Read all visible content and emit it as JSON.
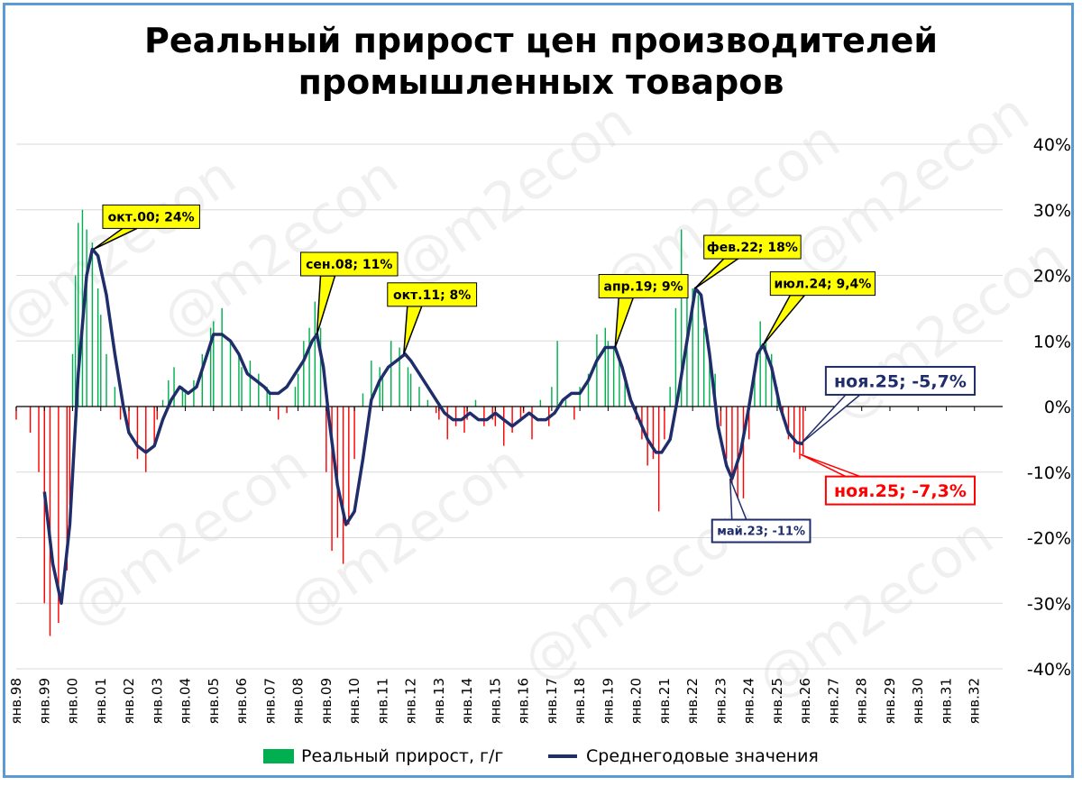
{
  "title_line1": "Реальный прирост цен производителей",
  "title_line2": "промышленных товаров",
  "watermark": "@m2econ",
  "colors": {
    "positive": "#00b050",
    "negative": "#ff0000",
    "line": "#1f2d6b",
    "callout_yellow": "#ffff00",
    "callout_red": "#ff0000",
    "callout_navy": "#1f2d6b"
  },
  "legend": {
    "bars": "Реальный прирост, г/г",
    "line": "Среднегодовые значения"
  },
  "chart_data": {
    "type": "bar",
    "title": "Реальный прирост цен производителей промышленных товаров",
    "ylim": [
      -40,
      40
    ],
    "y_ticks": [
      40,
      30,
      20,
      10,
      0,
      -10,
      -20,
      -30,
      -40
    ],
    "y_tick_labels": [
      "40%",
      "30%",
      "20%",
      "10%",
      "0%",
      "-10%",
      "-20%",
      "-30%",
      "-40%"
    ],
    "x_tick_labels": [
      "янв.98",
      "янв.99",
      "янв.00",
      "янв.01",
      "янв.02",
      "янв.03",
      "янв.04",
      "янв.05",
      "янв.06",
      "янв.07",
      "янв.08",
      "янв.09",
      "янв.10",
      "янв.11",
      "янв.12",
      "янв.13",
      "янв.14",
      "янв.15",
      "янв.16",
      "янв.17",
      "янв.18",
      "янв.19",
      "янв.20",
      "янв.21",
      "янв.22",
      "янв.23",
      "янв.24",
      "янв.25",
      "янв.26",
      "янв.27",
      "янв.28",
      "янв.29",
      "янв.30",
      "янв.31",
      "янв.32"
    ],
    "grid": true,
    "legend_position": "bottom",
    "bar_series": {
      "name": "Реальный прирост, г/г",
      "points": [
        [
          1998.0,
          -2
        ],
        [
          1998.5,
          -4
        ],
        [
          1998.8,
          -10
        ],
        [
          1999.0,
          -30
        ],
        [
          1999.2,
          -35
        ],
        [
          1999.5,
          -33
        ],
        [
          1999.8,
          -25
        ],
        [
          1999.9,
          -15
        ],
        [
          2000.0,
          8
        ],
        [
          2000.1,
          20
        ],
        [
          2000.2,
          28
        ],
        [
          2000.35,
          30
        ],
        [
          2000.5,
          27
        ],
        [
          2000.7,
          25
        ],
        [
          2000.9,
          18
        ],
        [
          2001.0,
          14
        ],
        [
          2001.2,
          8
        ],
        [
          2001.5,
          3
        ],
        [
          2001.7,
          -2
        ],
        [
          2002.0,
          -4
        ],
        [
          2002.3,
          -8
        ],
        [
          2002.6,
          -10
        ],
        [
          2002.9,
          -6
        ],
        [
          2003.0,
          -2
        ],
        [
          2003.2,
          1
        ],
        [
          2003.4,
          4
        ],
        [
          2003.6,
          6
        ],
        [
          2003.9,
          3
        ],
        [
          2004.0,
          2
        ],
        [
          2004.3,
          4
        ],
        [
          2004.6,
          8
        ],
        [
          2004.9,
          12
        ],
        [
          2005.0,
          13
        ],
        [
          2005.3,
          15
        ],
        [
          2005.6,
          10
        ],
        [
          2005.9,
          8
        ],
        [
          2006.0,
          6
        ],
        [
          2006.3,
          7
        ],
        [
          2006.6,
          5
        ],
        [
          2006.9,
          3
        ],
        [
          2007.0,
          2
        ],
        [
          2007.3,
          -2
        ],
        [
          2007.6,
          -1
        ],
        [
          2007.9,
          3
        ],
        [
          2008.0,
          5
        ],
        [
          2008.2,
          10
        ],
        [
          2008.4,
          12
        ],
        [
          2008.6,
          16
        ],
        [
          2008.8,
          12
        ],
        [
          2009.0,
          -10
        ],
        [
          2009.2,
          -22
        ],
        [
          2009.4,
          -20
        ],
        [
          2009.6,
          -24
        ],
        [
          2009.8,
          -18
        ],
        [
          2010.0,
          -8
        ],
        [
          2010.3,
          2
        ],
        [
          2010.6,
          7
        ],
        [
          2010.9,
          6
        ],
        [
          2011.0,
          5
        ],
        [
          2011.3,
          10
        ],
        [
          2011.6,
          9
        ],
        [
          2011.9,
          6
        ],
        [
          2012.0,
          5
        ],
        [
          2012.3,
          3
        ],
        [
          2012.6,
          1
        ],
        [
          2012.9,
          -1
        ],
        [
          2013.0,
          -2
        ],
        [
          2013.3,
          -5
        ],
        [
          2013.6,
          -3
        ],
        [
          2013.9,
          -4
        ],
        [
          2014.0,
          -2
        ],
        [
          2014.3,
          1
        ],
        [
          2014.6,
          -3
        ],
        [
          2014.9,
          -2
        ],
        [
          2015.0,
          -3
        ],
        [
          2015.3,
          -6
        ],
        [
          2015.6,
          -4
        ],
        [
          2015.9,
          -2
        ],
        [
          2016.0,
          -1
        ],
        [
          2016.3,
          -5
        ],
        [
          2016.6,
          1
        ],
        [
          2016.9,
          -3
        ],
        [
          2017.0,
          3
        ],
        [
          2017.2,
          10
        ],
        [
          2017.5,
          1
        ],
        [
          2017.8,
          -2
        ],
        [
          2018.0,
          3
        ],
        [
          2018.3,
          5
        ],
        [
          2018.6,
          11
        ],
        [
          2018.9,
          12
        ],
        [
          2019.0,
          10
        ],
        [
          2019.2,
          9
        ],
        [
          2019.4,
          7
        ],
        [
          2019.6,
          4
        ],
        [
          2019.8,
          0
        ],
        [
          2020.0,
          -2
        ],
        [
          2020.2,
          -5
        ],
        [
          2020.4,
          -9
        ],
        [
          2020.6,
          -8
        ],
        [
          2020.8,
          -16
        ],
        [
          2021.0,
          -5
        ],
        [
          2021.2,
          3
        ],
        [
          2021.4,
          15
        ],
        [
          2021.6,
          27
        ],
        [
          2021.8,
          20
        ],
        [
          2022.0,
          18
        ],
        [
          2022.2,
          17
        ],
        [
          2022.4,
          12
        ],
        [
          2022.6,
          8
        ],
        [
          2022.8,
          5
        ],
        [
          2023.0,
          -3
        ],
        [
          2023.2,
          -8
        ],
        [
          2023.4,
          -12
        ],
        [
          2023.6,
          -17
        ],
        [
          2023.8,
          -14
        ],
        [
          2024.0,
          -5
        ],
        [
          2024.2,
          5
        ],
        [
          2024.4,
          13
        ],
        [
          2024.6,
          10
        ],
        [
          2024.8,
          8
        ],
        [
          2025.0,
          3
        ],
        [
          2025.2,
          -2
        ],
        [
          2025.4,
          -5
        ],
        [
          2025.6,
          -7
        ],
        [
          2025.8,
          -8
        ],
        [
          2025.92,
          -7.3
        ]
      ]
    },
    "line_series": {
      "name": "Среднегодовые значения",
      "points": [
        [
          1999.0,
          -13
        ],
        [
          1999.3,
          -24
        ],
        [
          1999.6,
          -30
        ],
        [
          1999.9,
          -18
        ],
        [
          2000.2,
          5
        ],
        [
          2000.5,
          20
        ],
        [
          2000.7,
          24
        ],
        [
          2000.9,
          23
        ],
        [
          2001.2,
          17
        ],
        [
          2001.5,
          8
        ],
        [
          2001.8,
          0
        ],
        [
          2002.0,
          -4
        ],
        [
          2002.3,
          -6
        ],
        [
          2002.6,
          -7
        ],
        [
          2002.9,
          -6
        ],
        [
          2003.2,
          -2
        ],
        [
          2003.5,
          1
        ],
        [
          2003.8,
          3
        ],
        [
          2004.1,
          2
        ],
        [
          2004.4,
          3
        ],
        [
          2004.7,
          7
        ],
        [
          2005.0,
          11
        ],
        [
          2005.3,
          11
        ],
        [
          2005.6,
          10
        ],
        [
          2005.9,
          8
        ],
        [
          2006.2,
          5
        ],
        [
          2006.5,
          4
        ],
        [
          2006.8,
          3
        ],
        [
          2007.0,
          2
        ],
        [
          2007.3,
          2
        ],
        [
          2007.6,
          3
        ],
        [
          2007.9,
          5
        ],
        [
          2008.2,
          7
        ],
        [
          2008.5,
          10
        ],
        [
          2008.67,
          11
        ],
        [
          2008.9,
          6
        ],
        [
          2009.1,
          -2
        ],
        [
          2009.4,
          -12
        ],
        [
          2009.7,
          -18
        ],
        [
          2010.0,
          -16
        ],
        [
          2010.3,
          -8
        ],
        [
          2010.6,
          1
        ],
        [
          2010.9,
          4
        ],
        [
          2011.2,
          6
        ],
        [
          2011.5,
          7
        ],
        [
          2011.8,
          8
        ],
        [
          2012.0,
          7
        ],
        [
          2012.3,
          5
        ],
        [
          2012.6,
          3
        ],
        [
          2012.9,
          1
        ],
        [
          2013.2,
          -1
        ],
        [
          2013.5,
          -2
        ],
        [
          2013.8,
          -2
        ],
        [
          2014.1,
          -1
        ],
        [
          2014.4,
          -2
        ],
        [
          2014.7,
          -2
        ],
        [
          2015.0,
          -1
        ],
        [
          2015.3,
          -2
        ],
        [
          2015.6,
          -3
        ],
        [
          2015.9,
          -2
        ],
        [
          2016.2,
          -1
        ],
        [
          2016.5,
          -2
        ],
        [
          2016.8,
          -2
        ],
        [
          2017.1,
          -1
        ],
        [
          2017.4,
          1
        ],
        [
          2017.7,
          2
        ],
        [
          2018.0,
          2
        ],
        [
          2018.3,
          4
        ],
        [
          2018.6,
          7
        ],
        [
          2018.9,
          9
        ],
        [
          2019.1,
          9
        ],
        [
          2019.25,
          9
        ],
        [
          2019.5,
          6
        ],
        [
          2019.8,
          1
        ],
        [
          2020.1,
          -2
        ],
        [
          2020.4,
          -5
        ],
        [
          2020.7,
          -7
        ],
        [
          2020.9,
          -7
        ],
        [
          2021.2,
          -5
        ],
        [
          2021.5,
          2
        ],
        [
          2021.8,
          10
        ],
        [
          2022.1,
          18
        ],
        [
          2022.3,
          17
        ],
        [
          2022.6,
          8
        ],
        [
          2022.9,
          -3
        ],
        [
          2023.2,
          -9
        ],
        [
          2023.4,
          -11
        ],
        [
          2023.7,
          -7
        ],
        [
          2024.0,
          0
        ],
        [
          2024.3,
          8
        ],
        [
          2024.5,
          9.4
        ],
        [
          2024.8,
          6
        ],
        [
          2025.1,
          0
        ],
        [
          2025.4,
          -4
        ],
        [
          2025.7,
          -5.5
        ],
        [
          2025.92,
          -5.7
        ]
      ]
    },
    "annotations": [
      {
        "label": "окт.00; 24%",
        "x": 2000.75,
        "y": 24,
        "style": "yellow"
      },
      {
        "label": "сен.08; 11%",
        "x": 2008.67,
        "y": 11,
        "style": "yellow"
      },
      {
        "label": "окт.11; 8%",
        "x": 2011.75,
        "y": 8,
        "style": "yellow"
      },
      {
        "label": "апр.19; 9%",
        "x": 2019.25,
        "y": 9,
        "style": "yellow"
      },
      {
        "label": "фев.22; 18%",
        "x": 2022.08,
        "y": 18,
        "style": "yellow"
      },
      {
        "label": "июл.24; 9,4%",
        "x": 2024.5,
        "y": 9.4,
        "style": "yellow"
      },
      {
        "label": "ноя.25; -5,7%",
        "x": 2025.83,
        "y": -5.7,
        "style": "navy-big"
      },
      {
        "label": "ноя.25; -7,3%",
        "x": 2025.83,
        "y": -7.3,
        "style": "red-big"
      },
      {
        "label": "май.23; -11%",
        "x": 2023.33,
        "y": -11,
        "style": "navy-small"
      }
    ]
  }
}
